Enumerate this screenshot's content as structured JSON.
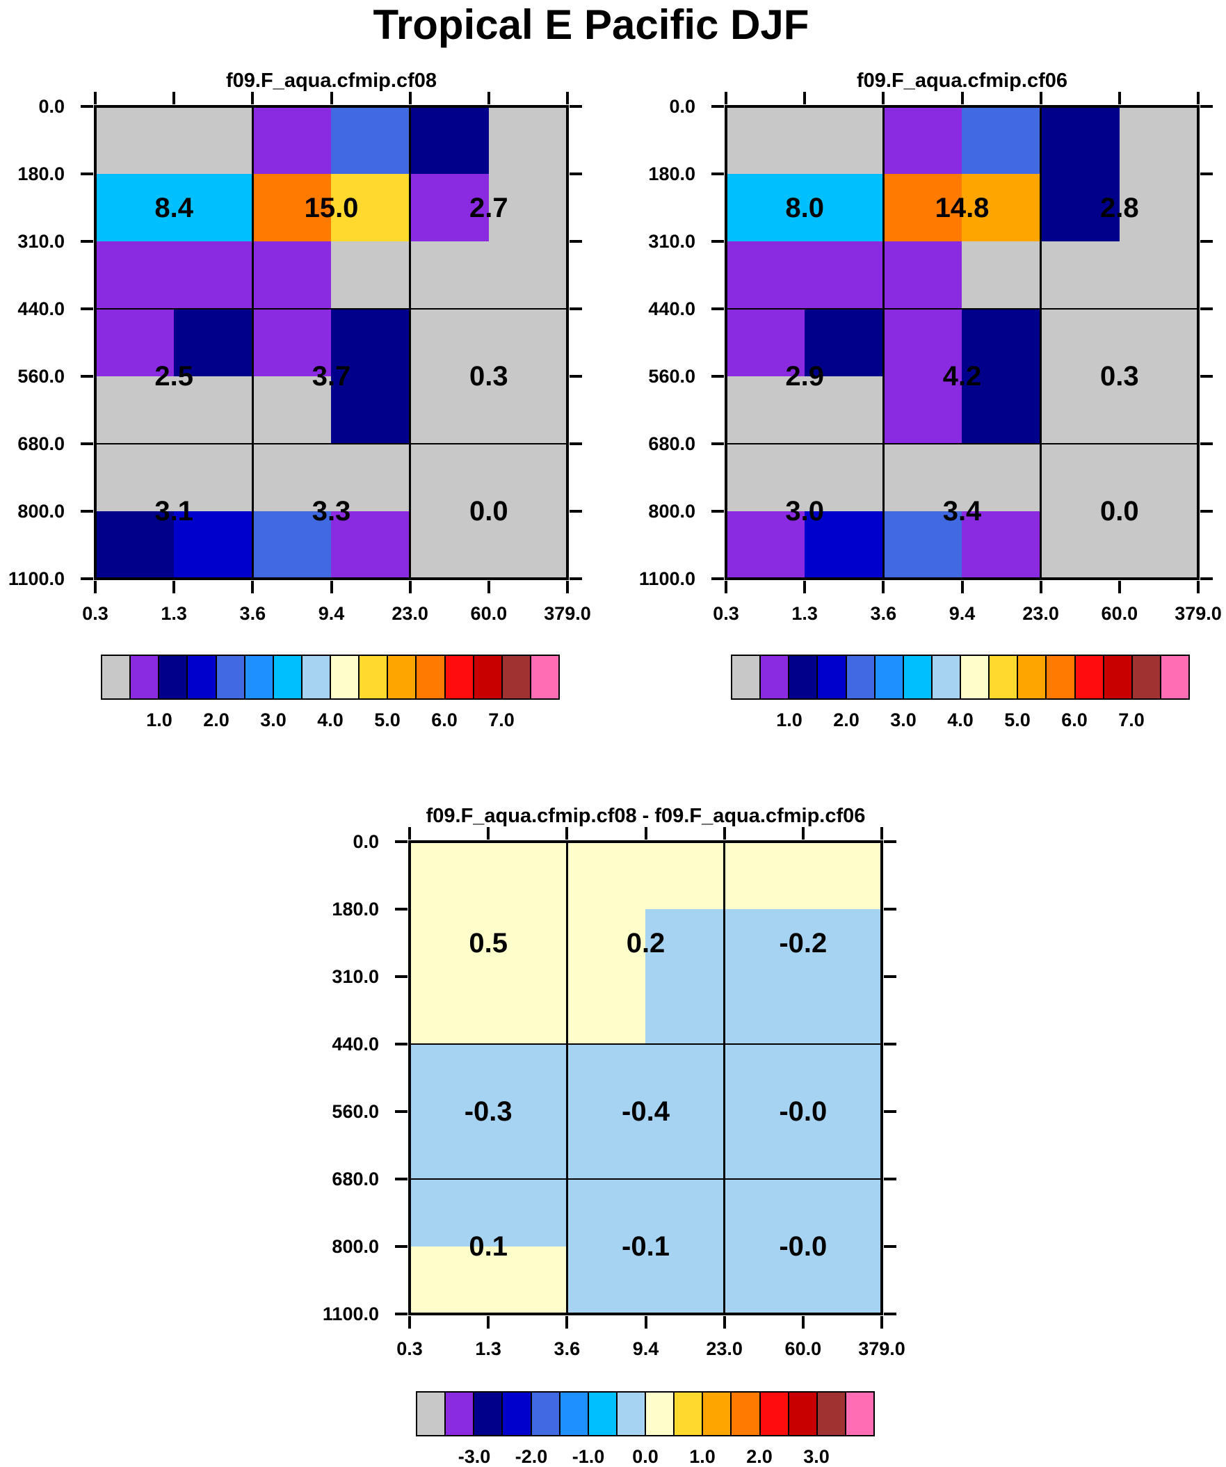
{
  "title": "Tropical E Pacific DJF",
  "palette": {
    "gray": "#C8C8C8",
    "purple": "#8A2BE2",
    "navy": "#00008B",
    "blue": "#0000CD",
    "royal": "#4169E1",
    "dodger": "#1E90FF",
    "deepsky": "#00BFFF",
    "lightblue": "#A6D3F2",
    "cream": "#FFFFCC",
    "gold": "#FFD92E",
    "amber": "#FFA500",
    "dkorange": "#FF7A00",
    "red": "#FF0D0D",
    "crimson": "#C90000",
    "brown": "#A03232",
    "pink": "#FF6EB4"
  },
  "colorbar_colors": [
    "gray",
    "purple",
    "navy",
    "blue",
    "royal",
    "dodger",
    "deepsky",
    "lightblue",
    "cream",
    "gold",
    "amber",
    "dkorange",
    "red",
    "crimson",
    "brown",
    "pink"
  ],
  "x_tick_labels": [
    "0.3",
    "1.3",
    "3.6",
    "9.4",
    "23.0",
    "60.0",
    "379.0"
  ],
  "y_tick_labels": [
    "0.0",
    "180.0",
    "310.0",
    "440.0",
    "560.0",
    "680.0",
    "800.0",
    "1100.0"
  ],
  "panels": [
    {
      "title": "f09.F_aqua.cfmip.cf08",
      "cells": [
        [
          "gray",
          "gray",
          "purple",
          "royal",
          "navy",
          "gray"
        ],
        [
          "deepsky",
          "deepsky",
          "dkorange",
          "gold",
          "purple",
          "gray"
        ],
        [
          "purple",
          "purple",
          "purple",
          "gray",
          "gray",
          "gray"
        ],
        [
          "purple",
          "navy",
          "purple",
          "navy",
          "gray",
          "gray"
        ],
        [
          "gray",
          "gray",
          "gray",
          "navy",
          "gray",
          "gray"
        ],
        [
          "gray",
          "gray",
          "gray",
          "gray",
          "gray",
          "gray"
        ],
        [
          "navy",
          "blue",
          "royal",
          "purple",
          "gray",
          "gray"
        ]
      ],
      "values": [
        [
          "8.4",
          "15.0",
          "2.7"
        ],
        [
          "2.5",
          "3.7",
          "0.3"
        ],
        [
          "3.1",
          "3.3",
          "0.0"
        ]
      ],
      "colorbar_labels": [
        "1.0",
        "2.0",
        "3.0",
        "4.0",
        "5.0",
        "6.0",
        "7.0"
      ]
    },
    {
      "title": "f09.F_aqua.cfmip.cf06",
      "cells": [
        [
          "gray",
          "gray",
          "purple",
          "royal",
          "navy",
          "gray"
        ],
        [
          "deepsky",
          "deepsky",
          "dkorange",
          "amber",
          "navy",
          "gray"
        ],
        [
          "purple",
          "purple",
          "purple",
          "gray",
          "gray",
          "gray"
        ],
        [
          "purple",
          "navy",
          "purple",
          "navy",
          "gray",
          "gray"
        ],
        [
          "gray",
          "gray",
          "purple",
          "navy",
          "gray",
          "gray"
        ],
        [
          "gray",
          "gray",
          "gray",
          "gray",
          "gray",
          "gray"
        ],
        [
          "purple",
          "blue",
          "royal",
          "purple",
          "gray",
          "gray"
        ]
      ],
      "values": [
        [
          "8.0",
          "14.8",
          "2.8"
        ],
        [
          "2.9",
          "4.2",
          "0.3"
        ],
        [
          "3.0",
          "3.4",
          "0.0"
        ]
      ],
      "colorbar_labels": [
        "1.0",
        "2.0",
        "3.0",
        "4.0",
        "5.0",
        "6.0",
        "7.0"
      ]
    },
    {
      "title": "f09.F_aqua.cfmip.cf08 - f09.F_aqua.cfmip.cf06",
      "cells": [
        [
          "cream",
          "cream",
          "cream",
          "cream",
          "cream",
          "cream"
        ],
        [
          "cream",
          "cream",
          "cream",
          "lightblue",
          "lightblue",
          "lightblue"
        ],
        [
          "cream",
          "cream",
          "cream",
          "lightblue",
          "lightblue",
          "lightblue"
        ],
        [
          "lightblue",
          "lightblue",
          "lightblue",
          "lightblue",
          "lightblue",
          "lightblue"
        ],
        [
          "lightblue",
          "lightblue",
          "lightblue",
          "lightblue",
          "lightblue",
          "lightblue"
        ],
        [
          "lightblue",
          "lightblue",
          "lightblue",
          "lightblue",
          "lightblue",
          "lightblue"
        ],
        [
          "cream",
          "cream",
          "lightblue",
          "lightblue",
          "lightblue",
          "lightblue"
        ]
      ],
      "values": [
        [
          "0.5",
          "0.2",
          "-0.2"
        ],
        [
          "-0.3",
          "-0.4",
          "-0.0"
        ],
        [
          "0.1",
          "-0.1",
          "-0.0"
        ]
      ],
      "colorbar_labels": [
        "-3.0",
        "-2.0",
        "-1.0",
        "0.0",
        "1.0",
        "2.0",
        "3.0"
      ]
    }
  ],
  "chart_data": [
    {
      "type": "heatmap",
      "title": "f09.F_aqua.cfmip.cf08",
      "x_bin_edges": [
        0.3,
        1.3,
        3.6,
        9.4,
        23.0,
        60.0,
        379.0
      ],
      "y_bin_edges": [
        0.0,
        180.0,
        310.0,
        440.0,
        560.0,
        680.0,
        800.0,
        1100.0
      ],
      "box_rows": [
        "0.0-440.0",
        "440.0-680.0",
        "680.0-1100.0"
      ],
      "box_columns": [
        "0.3-3.6",
        "3.6-23.0",
        "23.0-379.0"
      ],
      "box_values": [
        [
          8.4,
          15.0,
          2.7
        ],
        [
          2.5,
          3.7,
          0.3
        ],
        [
          3.1,
          3.3,
          0.0
        ]
      ],
      "colorbar_ticks": [
        1.0,
        2.0,
        3.0,
        4.0,
        5.0,
        6.0,
        7.0
      ],
      "colorbar_bin_width": 0.5,
      "legend_position": "bottom",
      "grid": "major boxes at x=3.6,23.0 and y=440,680"
    },
    {
      "type": "heatmap",
      "title": "f09.F_aqua.cfmip.cf06",
      "x_bin_edges": [
        0.3,
        1.3,
        3.6,
        9.4,
        23.0,
        60.0,
        379.0
      ],
      "y_bin_edges": [
        0.0,
        180.0,
        310.0,
        440.0,
        560.0,
        680.0,
        800.0,
        1100.0
      ],
      "box_rows": [
        "0.0-440.0",
        "440.0-680.0",
        "680.0-1100.0"
      ],
      "box_columns": [
        "0.3-3.6",
        "3.6-23.0",
        "23.0-379.0"
      ],
      "box_values": [
        [
          8.0,
          14.8,
          2.8
        ],
        [
          2.9,
          4.2,
          0.3
        ],
        [
          3.0,
          3.4,
          0.0
        ]
      ],
      "colorbar_ticks": [
        1.0,
        2.0,
        3.0,
        4.0,
        5.0,
        6.0,
        7.0
      ],
      "colorbar_bin_width": 0.5,
      "legend_position": "bottom",
      "grid": "major boxes at x=3.6,23.0 and y=440,680"
    },
    {
      "type": "heatmap",
      "title": "f09.F_aqua.cfmip.cf08 - f09.F_aqua.cfmip.cf06",
      "x_bin_edges": [
        0.3,
        1.3,
        3.6,
        9.4,
        23.0,
        60.0,
        379.0
      ],
      "y_bin_edges": [
        0.0,
        180.0,
        310.0,
        440.0,
        560.0,
        680.0,
        800.0,
        1100.0
      ],
      "box_rows": [
        "0.0-440.0",
        "440.0-680.0",
        "680.0-1100.0"
      ],
      "box_columns": [
        "0.3-3.6",
        "3.6-23.0",
        "23.0-379.0"
      ],
      "box_values": [
        [
          0.5,
          0.2,
          -0.2
        ],
        [
          -0.3,
          -0.4,
          -0.0
        ],
        [
          0.1,
          -0.1,
          -0.0
        ]
      ],
      "colorbar_ticks": [
        -3.0,
        -2.0,
        -1.0,
        0.0,
        1.0,
        2.0,
        3.0
      ],
      "colorbar_bin_width": 0.5,
      "legend_position": "bottom",
      "grid": "major boxes at x=3.6,23.0 and y=440,680"
    }
  ]
}
